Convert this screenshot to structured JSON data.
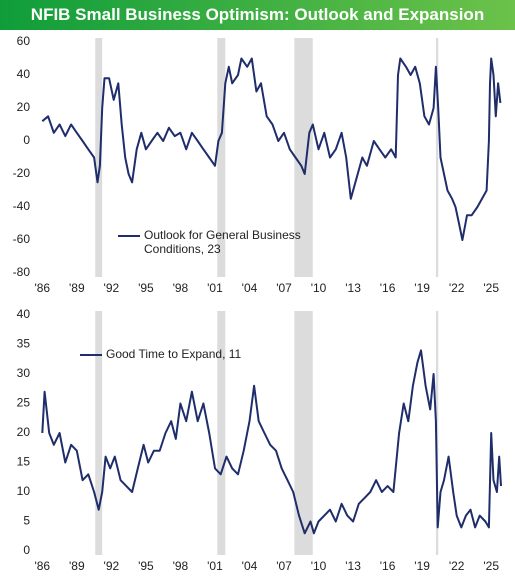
{
  "title": "NFIB Small Business Optimism: Outlook and Expansion",
  "chart_data": [
    {
      "type": "line",
      "series": [
        {
          "name": "Outlook for General Business Conditions, 23",
          "color": "#1f2d6b",
          "x": [
            1986.0,
            1986.5,
            1987.0,
            1987.5,
            1988.0,
            1988.5,
            1989.0,
            1989.5,
            1990.0,
            1990.5,
            1990.8,
            1991.0,
            1991.2,
            1991.4,
            1991.8,
            1992.2,
            1992.6,
            1992.9,
            1993.2,
            1993.5,
            1993.8,
            1994.2,
            1994.6,
            1995.0,
            1995.5,
            1996.0,
            1996.5,
            1997.0,
            1997.5,
            1998.0,
            1998.5,
            1999.0,
            1999.5,
            2000.0,
            2000.5,
            2001.0,
            2001.3,
            2001.6,
            2001.9,
            2002.2,
            2002.5,
            2003.0,
            2003.3,
            2003.8,
            2004.2,
            2004.6,
            2005.0,
            2005.5,
            2006.0,
            2006.5,
            2007.0,
            2007.5,
            2008.0,
            2008.5,
            2008.8,
            2009.2,
            2009.5,
            2010.0,
            2010.5,
            2011.0,
            2011.5,
            2012.0,
            2012.4,
            2012.8,
            2013.2,
            2013.8,
            2014.2,
            2014.8,
            2015.3,
            2015.8,
            2016.3,
            2016.7,
            2016.9,
            2017.1,
            2017.6,
            2018.0,
            2018.4,
            2018.8,
            2019.2,
            2019.6,
            2020.0,
            2020.2,
            2020.4,
            2020.6,
            2020.9,
            2021.2,
            2021.6,
            2021.9,
            2022.2,
            2022.5,
            2022.9,
            2023.3,
            2023.8,
            2024.2,
            2024.6,
            2024.8,
            2024.9,
            2025.0,
            2025.2,
            2025.4,
            2025.6,
            2025.8
          ],
          "values": [
            12,
            15,
            5,
            10,
            3,
            10,
            5,
            0,
            -5,
            -10,
            -25,
            -15,
            20,
            38,
            38,
            25,
            35,
            10,
            -10,
            -20,
            -25,
            -5,
            5,
            -5,
            0,
            5,
            0,
            8,
            3,
            5,
            -5,
            5,
            0,
            -5,
            -10,
            -15,
            0,
            5,
            35,
            45,
            35,
            40,
            50,
            45,
            50,
            30,
            35,
            15,
            10,
            0,
            5,
            -5,
            -10,
            -15,
            -20,
            5,
            10,
            -5,
            5,
            -10,
            -5,
            5,
            -10,
            -35,
            -25,
            -10,
            -15,
            0,
            -5,
            -10,
            -5,
            -10,
            40,
            50,
            45,
            40,
            45,
            35,
            15,
            10,
            20,
            45,
            20,
            -10,
            -20,
            -30,
            -35,
            -40,
            -50,
            -60,
            -45,
            -45,
            -40,
            -35,
            -30,
            0,
            35,
            50,
            40,
            15,
            35,
            23
          ]
        }
      ],
      "recessions": [
        [
          1990.6,
          1991.2
        ],
        [
          2001.2,
          2001.9
        ],
        [
          2007.9,
          2009.5
        ],
        [
          2020.2,
          2020.4
        ]
      ],
      "xlim": [
        1985.8,
        2026.2
      ],
      "xticks": [
        {
          "value": 1986,
          "label": "'86"
        },
        {
          "value": 1989,
          "label": "'89"
        },
        {
          "value": 1992,
          "label": "'92"
        },
        {
          "value": 1995,
          "label": "'95"
        },
        {
          "value": 1998,
          "label": "'98"
        },
        {
          "value": 2001,
          "label": "'01"
        },
        {
          "value": 2004,
          "label": "'04"
        },
        {
          "value": 2007,
          "label": "'07"
        },
        {
          "value": 2010,
          "label": "'10"
        },
        {
          "value": 2013,
          "label": "'13"
        },
        {
          "value": 2016,
          "label": "'16"
        },
        {
          "value": 2019,
          "label": "'19"
        },
        {
          "value": 2022,
          "label": "'22"
        },
        {
          "value": 2025,
          "label": "'25"
        }
      ],
      "ylim": [
        -80,
        60
      ],
      "yticks": [
        -80,
        -60,
        -40,
        -20,
        0,
        20,
        40,
        60
      ]
    },
    {
      "type": "line",
      "series": [
        {
          "name": "Good Time to Expand, 11",
          "color": "#1f2d6b",
          "x": [
            1986.0,
            1986.2,
            1986.6,
            1987.0,
            1987.5,
            1988.0,
            1988.5,
            1989.0,
            1989.5,
            1990.0,
            1990.5,
            1990.9,
            1991.2,
            1991.5,
            1991.9,
            1992.3,
            1992.8,
            1993.3,
            1993.8,
            1994.3,
            1994.8,
            1995.2,
            1995.7,
            1996.2,
            1996.7,
            1997.2,
            1997.6,
            1998.0,
            1998.5,
            1999.0,
            1999.5,
            2000.0,
            2000.5,
            2001.0,
            2001.5,
            2002.0,
            2002.5,
            2003.0,
            2003.5,
            2004.0,
            2004.4,
            2004.8,
            2005.3,
            2005.8,
            2006.3,
            2006.8,
            2007.3,
            2007.8,
            2008.3,
            2008.8,
            2009.3,
            2009.6,
            2010.0,
            2010.5,
            2011.0,
            2011.5,
            2012.0,
            2012.5,
            2013.0,
            2013.5,
            2014.0,
            2014.5,
            2015.0,
            2015.5,
            2016.0,
            2016.5,
            2017.0,
            2017.4,
            2017.8,
            2018.2,
            2018.6,
            2018.9,
            2019.3,
            2019.7,
            2020.0,
            2020.2,
            2020.35,
            2020.6,
            2020.9,
            2021.3,
            2021.7,
            2022.0,
            2022.4,
            2022.8,
            2023.2,
            2023.6,
            2024.0,
            2024.5,
            2024.8,
            2025.0,
            2025.2,
            2025.5,
            2025.7,
            2025.85
          ],
          "values": [
            20,
            27,
            20,
            18,
            20,
            15,
            18,
            17,
            12,
            13,
            10,
            7,
            10,
            16,
            14,
            16,
            12,
            11,
            10,
            14,
            18,
            15,
            17,
            17,
            20,
            22,
            19,
            25,
            22,
            27,
            22,
            25,
            20,
            14,
            13,
            16,
            14,
            13,
            17,
            22,
            28,
            22,
            20,
            18,
            17,
            14,
            12,
            10,
            6,
            3,
            5,
            3,
            5,
            6,
            7,
            5,
            8,
            6,
            5,
            8,
            9,
            10,
            12,
            10,
            11,
            10,
            20,
            25,
            22,
            28,
            32,
            34,
            28,
            24,
            30,
            22,
            4,
            10,
            12,
            16,
            10,
            6,
            4,
            6,
            7,
            4,
            6,
            5,
            4,
            20,
            12,
            10,
            16,
            11
          ]
        }
      ],
      "recessions": [
        [
          1990.6,
          1991.2
        ],
        [
          2001.2,
          2001.9
        ],
        [
          2007.9,
          2009.5
        ],
        [
          2020.2,
          2020.4
        ]
      ],
      "xlim": [
        1985.8,
        2026.2
      ],
      "xticks": [
        {
          "value": 1986,
          "label": "'86"
        },
        {
          "value": 1989,
          "label": "'89"
        },
        {
          "value": 1992,
          "label": "'92"
        },
        {
          "value": 1995,
          "label": "'95"
        },
        {
          "value": 1998,
          "label": "'98"
        },
        {
          "value": 2001,
          "label": "'01"
        },
        {
          "value": 2004,
          "label": "'04"
        },
        {
          "value": 2007,
          "label": "'07"
        },
        {
          "value": 2010,
          "label": "'10"
        },
        {
          "value": 2013,
          "label": "'13"
        },
        {
          "value": 2016,
          "label": "'16"
        },
        {
          "value": 2019,
          "label": "'19"
        },
        {
          "value": 2022,
          "label": "'22"
        },
        {
          "value": 2025,
          "label": "'25"
        }
      ],
      "ylim": [
        0,
        40
      ],
      "yticks": [
        0,
        5,
        10,
        15,
        20,
        25,
        30,
        35,
        40
      ]
    }
  ]
}
